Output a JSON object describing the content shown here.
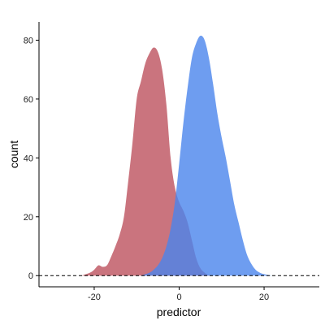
{
  "chart_data": {
    "type": "area",
    "xlabel": "predictor",
    "ylabel": "count",
    "xlim": [
      -33,
      33
    ],
    "ylim": [
      -3.8,
      86.2
    ],
    "x_ticks": [
      -20,
      0,
      20
    ],
    "y_ticks": [
      0,
      20,
      40,
      60,
      80
    ],
    "x_tick_labels": [
      "-20",
      "0",
      "20"
    ],
    "y_tick_labels": [
      "0",
      "20",
      "40",
      "60",
      "80"
    ],
    "grid": false,
    "legend": "none",
    "reference_line": {
      "y": 0,
      "style": "dashed"
    },
    "series": [
      {
        "color": "#b84553",
        "opacity": 0.75,
        "x": [
          -23,
          -21,
          -20,
          -19,
          -18,
          -17,
          -16,
          -15,
          -14,
          -13,
          -12,
          -11,
          -10,
          -9,
          -8,
          -7,
          -6,
          -5,
          -4,
          -3,
          -2,
          -1,
          0,
          1,
          2,
          3,
          4,
          5,
          6,
          7
        ],
        "values": [
          0,
          1,
          2,
          3.5,
          3,
          3.5,
          6.5,
          10,
          14,
          20,
          32,
          45,
          60,
          66,
          72,
          75.5,
          77.5,
          76,
          70,
          58,
          40,
          30,
          25,
          22,
          18,
          12,
          6,
          2.5,
          1,
          0
        ]
      },
      {
        "color": "#4a84ec",
        "opacity": 0.8,
        "x": [
          -9,
          -7,
          -6,
          -5,
          -4,
          -3,
          -2,
          -1,
          0,
          1,
          2,
          3,
          4,
          5,
          6,
          7,
          8,
          9,
          10,
          11,
          12,
          13,
          14,
          15,
          16,
          17,
          18,
          19,
          20,
          21,
          22
        ],
        "values": [
          0,
          1,
          2,
          3.5,
          6,
          10,
          16,
          25,
          38,
          52,
          64,
          74,
          79,
          81.5,
          80,
          74,
          65,
          55,
          47,
          40,
          32,
          24,
          18,
          12,
          7,
          4,
          2,
          1,
          0.5,
          0.2,
          0
        ]
      }
    ]
  }
}
